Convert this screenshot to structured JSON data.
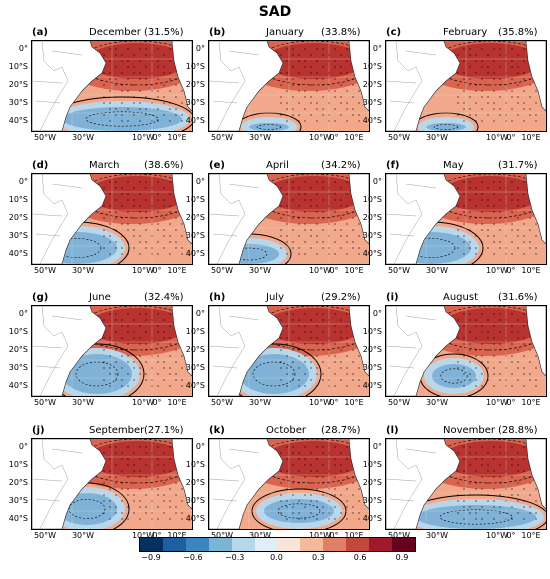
{
  "figure": {
    "title": "SAD",
    "panels": [
      {
        "label": "(a)",
        "month": "December",
        "pct": "(31.5%)",
        "anom": "south-neg"
      },
      {
        "label": "(b)",
        "month": "January",
        "pct": "(33.8%)",
        "anom": "mostly-pos"
      },
      {
        "label": "(c)",
        "month": "February",
        "pct": "(35.8%)",
        "anom": "mostly-pos"
      },
      {
        "label": "(d)",
        "month": "March",
        "pct": "(38.6%)",
        "anom": "sw-neg"
      },
      {
        "label": "(e)",
        "month": "April",
        "pct": "(34.2%)",
        "anom": "sw-neg-small"
      },
      {
        "label": "(f)",
        "month": "May",
        "pct": "(31.7%)",
        "anom": "sw-neg"
      },
      {
        "label": "(g)",
        "month": "June",
        "pct": "(32.4%)",
        "anom": "center-neg"
      },
      {
        "label": "(h)",
        "month": "July",
        "pct": "(29.2%)",
        "anom": "center-neg"
      },
      {
        "label": "(i)",
        "month": "August",
        "pct": "(31.6%)",
        "anom": "center-neg-small"
      },
      {
        "label": "(j)",
        "month": "September",
        "pct": "(27.1%)",
        "anom": "sw-weak"
      },
      {
        "label": "(k)",
        "month": "October",
        "pct": "(28.7%)",
        "anom": "center-weak"
      },
      {
        "label": "(l)",
        "month": "November",
        "pct": "(28.8%)",
        "anom": "south-neg"
      }
    ],
    "y_ticks": [
      "0°",
      "10°S",
      "20°S",
      "30°S",
      "40°S"
    ],
    "x_ticks": [
      "50°W",
      "30°W",
      "10°W",
      "0°",
      "10°E"
    ],
    "colorbar": {
      "ticks": [
        "−0.9",
        "−0.6",
        "−0.3",
        "0.0",
        "0.3",
        "0.6",
        "0.9"
      ],
      "colors": [
        "#053061",
        "#1d5fa0",
        "#3a87bf",
        "#7ab5d6",
        "#b7d8ea",
        "#e2eef5",
        "#f8e4d8",
        "#f4b99a",
        "#e08064",
        "#c3473d",
        "#a01a2b",
        "#67001f"
      ]
    },
    "colors": {
      "positive_strong": "#b8322f",
      "positive_mid": "#d9644f",
      "positive_weak": "#f2a88a",
      "negative_weak": "#b9d7ea",
      "negative_mid": "#7fb2d6",
      "land": "#ffffff"
    }
  }
}
